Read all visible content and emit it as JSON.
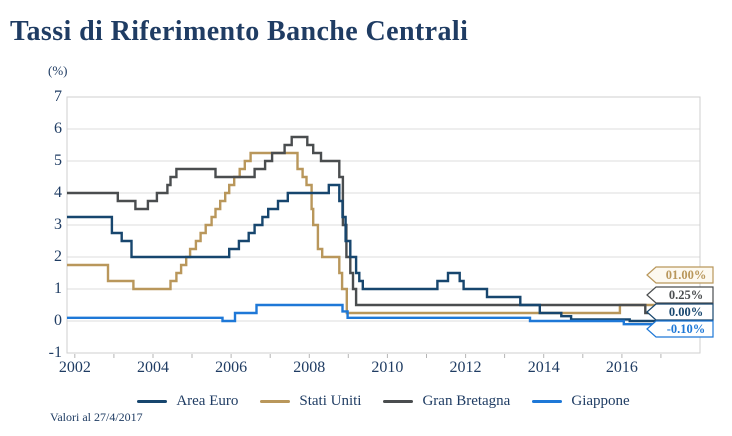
{
  "page": {
    "title": "Tassi di Riferimento Banche Centrali",
    "unit_label": "(%)",
    "footnote": "Valori al 27/4/2017"
  },
  "colors": {
    "title_text": "#1f3c63",
    "axis_text": "#1f3c63",
    "gridline": "#dcdcdc",
    "plot_border": "#cfcfcf",
    "tick": "#b5b5b5",
    "background": "#ffffff"
  },
  "end_labels": [
    {
      "text": "01.00%",
      "series": "Stati Uniti",
      "color": "#b9975b",
      "fill": "#fdf9f0"
    },
    {
      "text": "0.25%",
      "series": "Gran Bretagna",
      "color": "#4a4d4f",
      "fill": "#ffffff"
    },
    {
      "text": "0.00%",
      "series": "Area Euro",
      "color": "#17466e",
      "fill": "#ffffff"
    },
    {
      "text": "-0.10%",
      "series": "Giappone",
      "color": "#1e78d7",
      "fill": "#ffffff"
    }
  ],
  "chart_data": {
    "type": "line",
    "step": true,
    "title": "Tassi di Riferimento Banche Centrali",
    "ylabel": "(%)",
    "x_domain": [
      2001.8,
      2018.0
    ],
    "y_domain": [
      -1,
      7
    ],
    "y_ticks": [
      -1,
      0,
      1,
      2,
      3,
      4,
      5,
      6,
      7
    ],
    "x_ticks": [
      2002,
      2004,
      2006,
      2008,
      2010,
      2012,
      2014,
      2016
    ],
    "x_minor_ticks": [
      2002,
      2003,
      2004,
      2005,
      2006,
      2007,
      2008,
      2009,
      2010,
      2011,
      2012,
      2013,
      2014,
      2015,
      2016,
      2017
    ],
    "grid": "horizontal",
    "legend_position": "bottom",
    "draw_order": [
      1,
      2,
      0,
      3
    ],
    "series": [
      {
        "name": "Area Euro",
        "color": "#17466e",
        "end_value": "0.00%",
        "points": [
          [
            2001.8,
            3.25
          ],
          [
            2002.95,
            2.75
          ],
          [
            2003.2,
            2.5
          ],
          [
            2003.45,
            2.0
          ],
          [
            2005.95,
            2.25
          ],
          [
            2006.2,
            2.5
          ],
          [
            2006.45,
            2.75
          ],
          [
            2006.6,
            3.0
          ],
          [
            2006.8,
            3.25
          ],
          [
            2006.95,
            3.5
          ],
          [
            2007.2,
            3.75
          ],
          [
            2007.45,
            4.0
          ],
          [
            2008.5,
            4.25
          ],
          [
            2008.77,
            3.75
          ],
          [
            2008.85,
            3.25
          ],
          [
            2008.93,
            2.5
          ],
          [
            2009.05,
            2.0
          ],
          [
            2009.2,
            1.5
          ],
          [
            2009.28,
            1.25
          ],
          [
            2009.37,
            1.0
          ],
          [
            2011.28,
            1.25
          ],
          [
            2011.55,
            1.5
          ],
          [
            2011.85,
            1.25
          ],
          [
            2011.95,
            1.0
          ],
          [
            2012.55,
            0.75
          ],
          [
            2013.4,
            0.5
          ],
          [
            2013.9,
            0.25
          ],
          [
            2014.45,
            0.15
          ],
          [
            2014.7,
            0.05
          ],
          [
            2016.2,
            0.0
          ],
          [
            2017.33,
            0.0
          ]
        ]
      },
      {
        "name": "Stati Uniti",
        "color": "#b9975b",
        "end_value": "01.00%",
        "points": [
          [
            2001.8,
            1.75
          ],
          [
            2002.85,
            1.25
          ],
          [
            2003.5,
            1.0
          ],
          [
            2004.45,
            1.25
          ],
          [
            2004.6,
            1.5
          ],
          [
            2004.72,
            1.75
          ],
          [
            2004.85,
            2.0
          ],
          [
            2004.95,
            2.25
          ],
          [
            2005.1,
            2.5
          ],
          [
            2005.22,
            2.75
          ],
          [
            2005.35,
            3.0
          ],
          [
            2005.5,
            3.25
          ],
          [
            2005.6,
            3.5
          ],
          [
            2005.72,
            3.75
          ],
          [
            2005.85,
            4.0
          ],
          [
            2005.95,
            4.25
          ],
          [
            2006.08,
            4.5
          ],
          [
            2006.22,
            4.75
          ],
          [
            2006.35,
            5.0
          ],
          [
            2006.5,
            5.25
          ],
          [
            2007.7,
            4.75
          ],
          [
            2007.83,
            4.5
          ],
          [
            2007.93,
            4.25
          ],
          [
            2008.06,
            3.5
          ],
          [
            2008.1,
            3.0
          ],
          [
            2008.22,
            2.25
          ],
          [
            2008.33,
            2.0
          ],
          [
            2008.77,
            1.5
          ],
          [
            2008.84,
            1.0
          ],
          [
            2008.96,
            0.25
          ],
          [
            2015.95,
            0.5
          ],
          [
            2016.95,
            0.75
          ],
          [
            2017.2,
            1.0
          ],
          [
            2017.33,
            1.0
          ]
        ]
      },
      {
        "name": "Gran Bretagna",
        "color": "#4a4d4f",
        "end_value": "0.25%",
        "points": [
          [
            2001.8,
            4.0
          ],
          [
            2003.1,
            3.75
          ],
          [
            2003.55,
            3.5
          ],
          [
            2003.87,
            3.75
          ],
          [
            2004.1,
            4.0
          ],
          [
            2004.37,
            4.25
          ],
          [
            2004.45,
            4.5
          ],
          [
            2004.6,
            4.75
          ],
          [
            2005.6,
            4.5
          ],
          [
            2006.6,
            4.75
          ],
          [
            2006.87,
            5.0
          ],
          [
            2007.05,
            5.25
          ],
          [
            2007.37,
            5.5
          ],
          [
            2007.55,
            5.75
          ],
          [
            2007.95,
            5.5
          ],
          [
            2008.1,
            5.25
          ],
          [
            2008.3,
            5.0
          ],
          [
            2008.77,
            4.5
          ],
          [
            2008.86,
            3.0
          ],
          [
            2008.95,
            2.0
          ],
          [
            2009.05,
            1.5
          ],
          [
            2009.12,
            1.0
          ],
          [
            2009.2,
            0.5
          ],
          [
            2016.6,
            0.25
          ],
          [
            2017.33,
            0.25
          ]
        ]
      },
      {
        "name": "Giappone",
        "color": "#1e78d7",
        "end_value": "-0.10%",
        "points": [
          [
            2001.8,
            0.1
          ],
          [
            2005.78,
            0.0
          ],
          [
            2006.1,
            0.25
          ],
          [
            2006.65,
            0.5
          ],
          [
            2008.85,
            0.3
          ],
          [
            2008.98,
            0.1
          ],
          [
            2013.65,
            0.0
          ],
          [
            2016.05,
            -0.1
          ],
          [
            2017.33,
            -0.1
          ]
        ]
      }
    ]
  }
}
